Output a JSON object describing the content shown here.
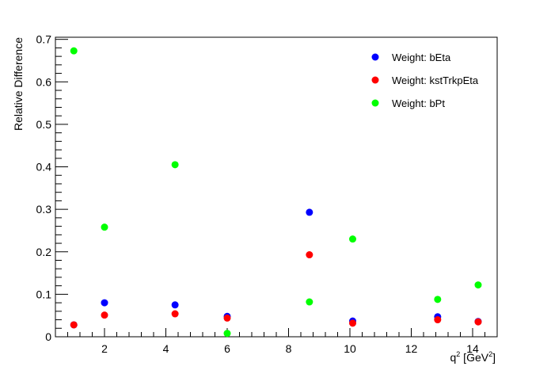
{
  "chart_data": {
    "type": "scatter",
    "xlabel": "q",
    "xlabel_sup": "2",
    "xlabel_unit": " [GeV",
    "xlabel_unit_sup": "2",
    "xlabel_close": "]",
    "ylabel": "Relative Difference",
    "xlim": [
      0.4,
      14.8
    ],
    "ylim": [
      0,
      0.705
    ],
    "x_ticks": [
      2,
      4,
      6,
      8,
      10,
      12,
      14
    ],
    "x_tick_labels": [
      "2",
      "4",
      "6",
      "8",
      "10",
      "12",
      "14"
    ],
    "y_ticks": [
      0,
      0.1,
      0.2,
      0.3,
      0.4,
      0.5,
      0.6,
      0.7
    ],
    "y_tick_labels": [
      "0",
      "0.1",
      "0.2",
      "0.3",
      "0.4",
      "0.5",
      "0.6",
      "0.7"
    ],
    "grid": false,
    "legend_position": "top-right",
    "x": [
      1.0,
      2.0,
      4.3,
      6.0,
      8.68,
      10.09,
      12.86,
      14.18
    ],
    "series": [
      {
        "name": "Weight: bEta",
        "color": "#0000ff",
        "values": [
          0.028,
          0.08,
          0.075,
          0.048,
          0.293,
          0.037,
          0.047,
          0.036
        ]
      },
      {
        "name": "Weight: kstTrkpEta",
        "color": "#ff0000",
        "values": [
          0.028,
          0.051,
          0.054,
          0.044,
          0.193,
          0.032,
          0.04,
          0.035
        ]
      },
      {
        "name": "Weight: bPt",
        "color": "#00ff00",
        "values": [
          0.673,
          0.258,
          0.405,
          0.008,
          0.082,
          0.23,
          0.088,
          0.122
        ]
      }
    ]
  }
}
